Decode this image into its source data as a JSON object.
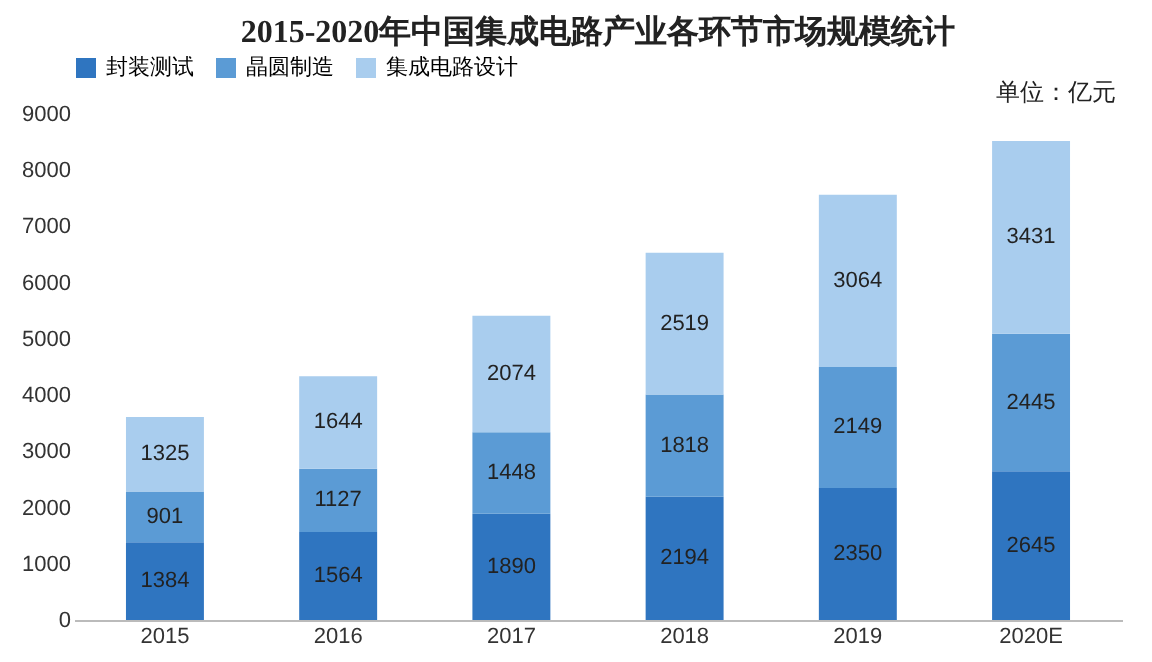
{
  "chart_data": {
    "type": "bar",
    "title": "2015-2020年中国集成电路产业各环节市场规模统计",
    "categories": [
      "2015",
      "2016",
      "2017",
      "2018",
      "2019",
      "2020E"
    ],
    "stacked": true,
    "data_labels": true,
    "legend": "top",
    "grid": false,
    "ylim": [
      0,
      9000
    ],
    "yticks": [
      0,
      1000,
      2000,
      3000,
      4000,
      5000,
      6000,
      7000,
      8000,
      9000
    ],
    "series": [
      {
        "name": "封装测试",
        "color": "#2f75c0",
        "values": [
          1384,
          1564,
          1890,
          2194,
          2350,
          2645
        ]
      },
      {
        "name": "晶圆制造",
        "color": "#5b9bd5",
        "values": [
          901,
          1127,
          1448,
          1818,
          2149,
          2445
        ]
      },
      {
        "name": "集成电路设计",
        "color": "#a9cdee",
        "values": [
          1325,
          1644,
          2074,
          2519,
          3064,
          3431
        ]
      }
    ],
    "annotations": [
      "单位：亿元"
    ]
  }
}
